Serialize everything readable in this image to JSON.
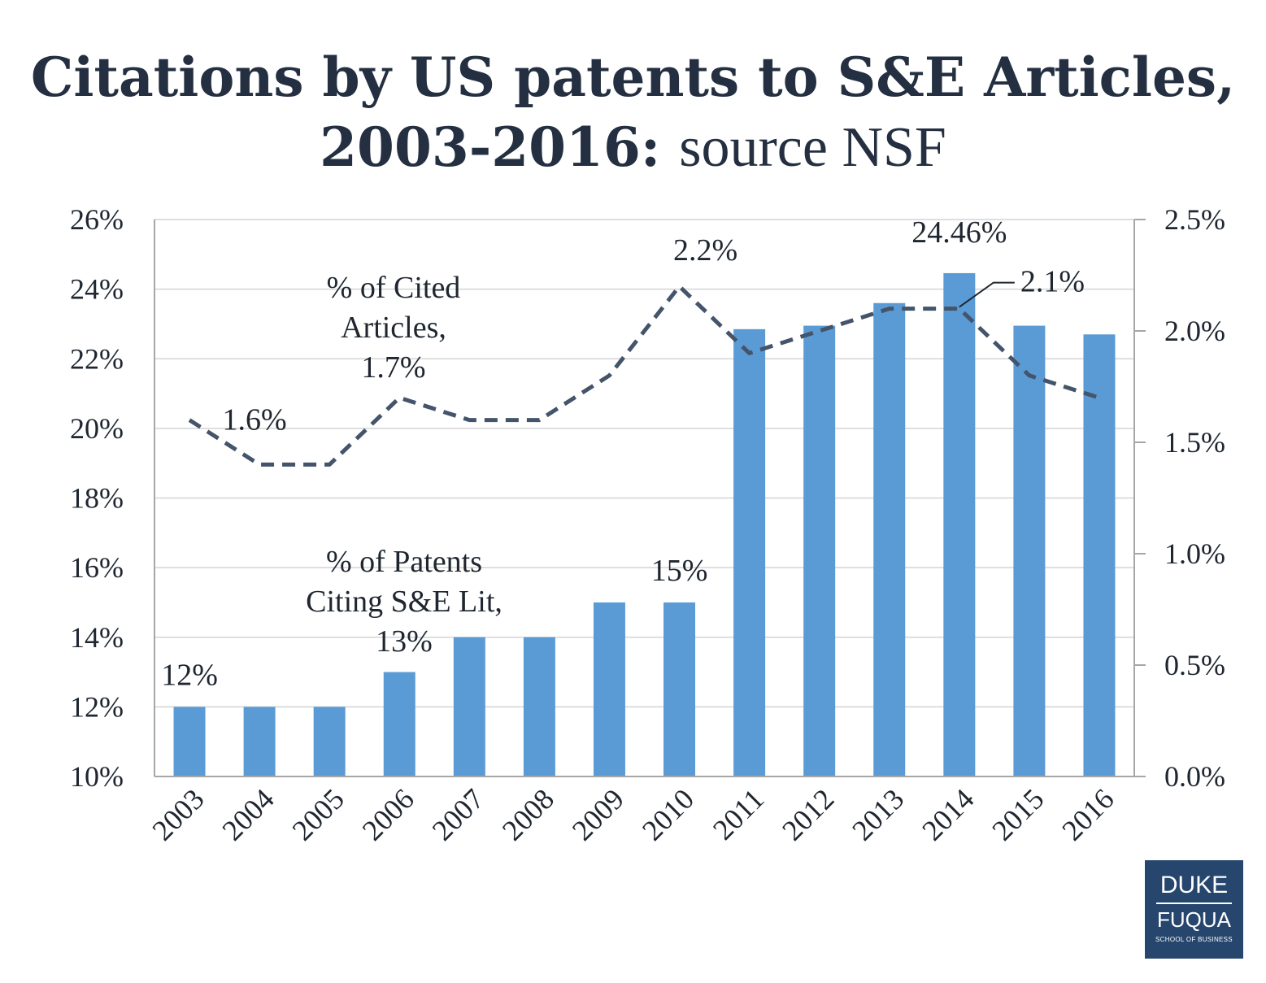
{
  "title": {
    "bold": "Citations by US patents to S&E Articles, 2003-2016:",
    "normal": "source NSF"
  },
  "chart_data": {
    "type": "bar",
    "title": "Citations by US patents to S&E Articles, 2003-2016: source NSF",
    "categories": [
      "2003",
      "2004",
      "2005",
      "2006",
      "2007",
      "2008",
      "2009",
      "2010",
      "2011",
      "2012",
      "2013",
      "2014",
      "2015",
      "2016"
    ],
    "series": [
      {
        "name": "% of Patents Citing S&E Lit",
        "type": "bar",
        "axis": "left",
        "color": "#5b9bd5",
        "values": [
          12,
          12,
          12,
          13,
          14,
          14,
          15,
          15,
          22.85,
          22.95,
          23.6,
          24.46,
          22.95,
          22.7
        ]
      },
      {
        "name": "% of Cited Articles",
        "type": "line",
        "style": "dashed",
        "axis": "right",
        "color": "#44546a",
        "values": [
          1.6,
          1.4,
          1.4,
          1.7,
          1.6,
          1.6,
          1.8,
          2.2,
          1.9,
          2.0,
          2.1,
          2.1,
          1.8,
          1.7
        ]
      }
    ],
    "y_left": {
      "ylim": [
        10,
        26
      ],
      "ticks": [
        10,
        12,
        14,
        16,
        18,
        20,
        22,
        24,
        26
      ],
      "tick_labels": [
        "10%",
        "12%",
        "14%",
        "16%",
        "18%",
        "20%",
        "22%",
        "24%",
        "26%"
      ]
    },
    "y_right": {
      "ylim": [
        0,
        2.5
      ],
      "ticks": [
        0,
        0.5,
        1.0,
        1.5,
        2.0,
        2.5
      ],
      "tick_labels": [
        "0.0%",
        "0.5%",
        "1.0%",
        "1.5%",
        "2.0%",
        "2.5%"
      ]
    },
    "grid": true,
    "annotations": [
      {
        "text": "12%",
        "series": 0,
        "index": 0
      },
      {
        "text": "15%",
        "series": 0,
        "index": 7
      },
      {
        "text": "24.46%",
        "series": 0,
        "index": 11
      },
      {
        "text": "1.6%",
        "series": 1,
        "index": 0
      },
      {
        "text": "2.2%",
        "series": 1,
        "index": 7
      },
      {
        "text": "2.1%",
        "series": 1,
        "index": 11,
        "leader_line": true
      },
      {
        "lines": [
          "% of Cited",
          "Articles,",
          "1.7%"
        ],
        "series": 1,
        "index": 3
      },
      {
        "lines": [
          "% of Patents",
          "Citing S&E Lit,",
          "13%"
        ],
        "series": 0,
        "index": 3
      }
    ]
  },
  "logo": {
    "line1": "DUKE",
    "line2": "FUQUA",
    "line3": "SCHOOL OF BUSINESS"
  }
}
